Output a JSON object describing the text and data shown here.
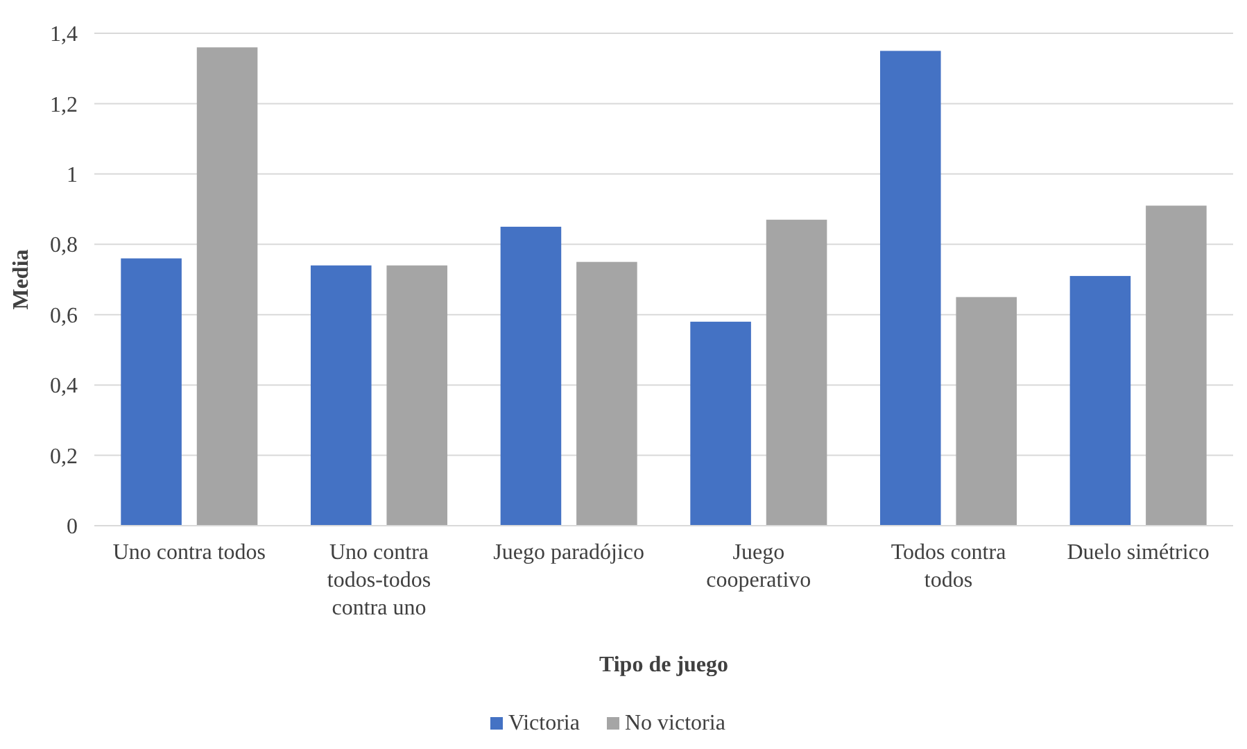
{
  "chart_data": {
    "type": "bar",
    "xlabel": "Tipo de juego",
    "ylabel": "Media",
    "categories": [
      "Uno contra todos",
      "Uno contra todos-todos contra uno",
      "Juego paradójico",
      "Juego cooperativo",
      "Todos contra todos",
      "Duelo simétrico"
    ],
    "series": [
      {
        "name": "Victoria",
        "color": "#4472c4",
        "values": [
          0.76,
          0.74,
          0.85,
          0.58,
          1.35,
          0.71
        ]
      },
      {
        "name": "No victoria",
        "color": "#a5a5a5",
        "values": [
          1.36,
          0.74,
          0.75,
          0.87,
          0.65,
          0.91
        ]
      }
    ],
    "ylim": [
      0,
      1.4
    ],
    "yticks": [
      {
        "value": 0,
        "label": "0"
      },
      {
        "value": 0.2,
        "label": "0,2"
      },
      {
        "value": 0.4,
        "label": "0,4"
      },
      {
        "value": 0.6,
        "label": "0,6"
      },
      {
        "value": 0.8,
        "label": "0,8"
      },
      {
        "value": 1,
        "label": "1"
      },
      {
        "value": 1.2,
        "label": "1,2"
      },
      {
        "value": 1.4,
        "label": "1,4"
      }
    ],
    "grid": "y",
    "legend": "bottom"
  }
}
